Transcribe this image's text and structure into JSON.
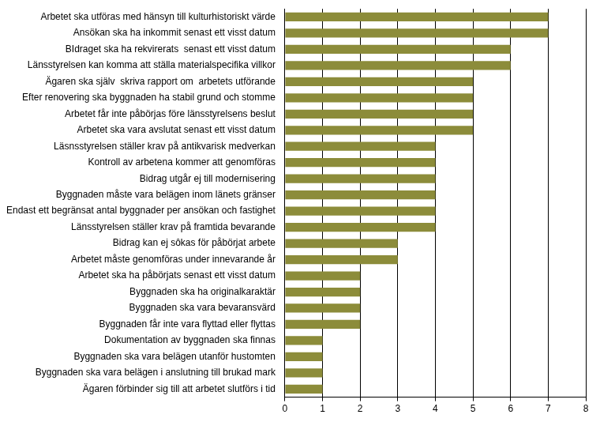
{
  "chart_data": {
    "type": "bar",
    "orientation": "horizontal",
    "categories": [
      "Arbetet ska utföras med hänsyn till kulturhistoriskt värde",
      "Ansökan ska ha inkommit senast ett visst datum",
      "BIdraget ska ha rekvirerats  senast ett visst datum",
      "Länsstyrelsen kan komma att ställa materialspecifika villkor",
      "Ägaren ska själv  skriva rapport om  arbetets utförande",
      "Efter renovering ska byggnaden ha stabil grund och stomme",
      "Arbetet får inte påbörjas före länsstyrelsens beslut",
      "Arbetet ska vara avslutat senast ett visst datum",
      "Läsnsstyrelsen ställer krav på antikvarisk medverkan",
      "Kontroll av arbetena kommer att genomföras",
      "Bidrag utgår ej till modernisering",
      "Byggnaden måste vara belägen inom länets gränser",
      "Endast ett begränsat antal byggnader per ansökan och fastighet",
      "Länsstyrelsen ställer krav på framtida bevarande",
      "Bidrag kan ej sôkas för påbörjat arbete",
      "Arbetet måste genomföras under innevarande år",
      "Arbetet ska ha påbörjats senast ett visst datum",
      "Byggnaden ska ha originalkaraktär",
      "Byggnaden ska vara bevaransvärd",
      "Byggnaden får inte vara flyttad eller flyttas",
      "Dokumentation av byggnaden ska finnas",
      "Byggnaden ska vara belägen utanför hustomten",
      "Byggnaden ska vara belägen i anslutning till brukad mark",
      "Ägaren förbinder sig till att arbetet slutförs i tid"
    ],
    "values": [
      7,
      7,
      6,
      6,
      5,
      5,
      5,
      5,
      4,
      4,
      4,
      4,
      4,
      4,
      3,
      3,
      2,
      2,
      2,
      2,
      1,
      1,
      1,
      1
    ],
    "color": "#8c8c3a",
    "xlim": [
      0,
      8
    ],
    "xticks": [
      0,
      1,
      2,
      3,
      4,
      5,
      6,
      7,
      8
    ],
    "grid": true
  }
}
